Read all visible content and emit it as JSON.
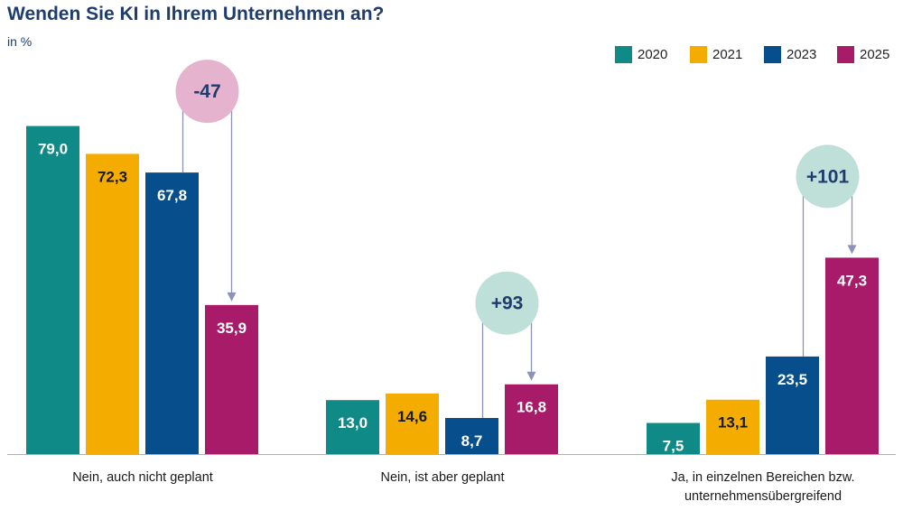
{
  "title": "Wenden Sie KI in Ihrem Unternehmen an?",
  "subtitle": "in %",
  "legend": [
    {
      "label": "2020",
      "color": "#0f8a86"
    },
    {
      "label": "2021",
      "color": "#f5ac00"
    },
    {
      "label": "2023",
      "color": "#064f8c"
    },
    {
      "label": "2025",
      "color": "#a71b68"
    }
  ],
  "chart_data": {
    "type": "bar",
    "title": "Wenden Sie KI in Ihrem Unternehmen an?",
    "ylabel": "in %",
    "xlabel": "",
    "ylim": [
      0,
      85
    ],
    "grid": false,
    "legend_position": "top-right",
    "categories": [
      "Nein, auch nicht geplant",
      "Nein, ist aber geplant",
      "Ja, in einzelnen Bereichen bzw. unternehmensübergreifend"
    ],
    "series": [
      {
        "name": "2020",
        "values": [
          79.0,
          13.0,
          7.5
        ],
        "labels": [
          "79,0",
          "13,0",
          "7,5"
        ]
      },
      {
        "name": "2021",
        "values": [
          72.3,
          14.6,
          13.1
        ],
        "labels": [
          "72,3",
          "14,6",
          "13,1"
        ]
      },
      {
        "name": "2023",
        "values": [
          67.8,
          8.7,
          23.5
        ],
        "labels": [
          "67,8",
          "8,7",
          "23,5"
        ]
      },
      {
        "name": "2025",
        "values": [
          35.9,
          16.8,
          47.3
        ],
        "labels": [
          "35,9",
          "16,8",
          "47,3"
        ]
      }
    ],
    "annotations": [
      {
        "text": "-47",
        "category": 0,
        "from_series": "2023",
        "to_series": "2025",
        "color": "#e6b3cf"
      },
      {
        "text": "+93",
        "category": 1,
        "from_series": "2023",
        "to_series": "2025",
        "color": "#bfe0d8"
      },
      {
        "text": "+101",
        "category": 2,
        "from_series": "2023",
        "to_series": "2025",
        "color": "#bfe0d8"
      }
    ]
  }
}
